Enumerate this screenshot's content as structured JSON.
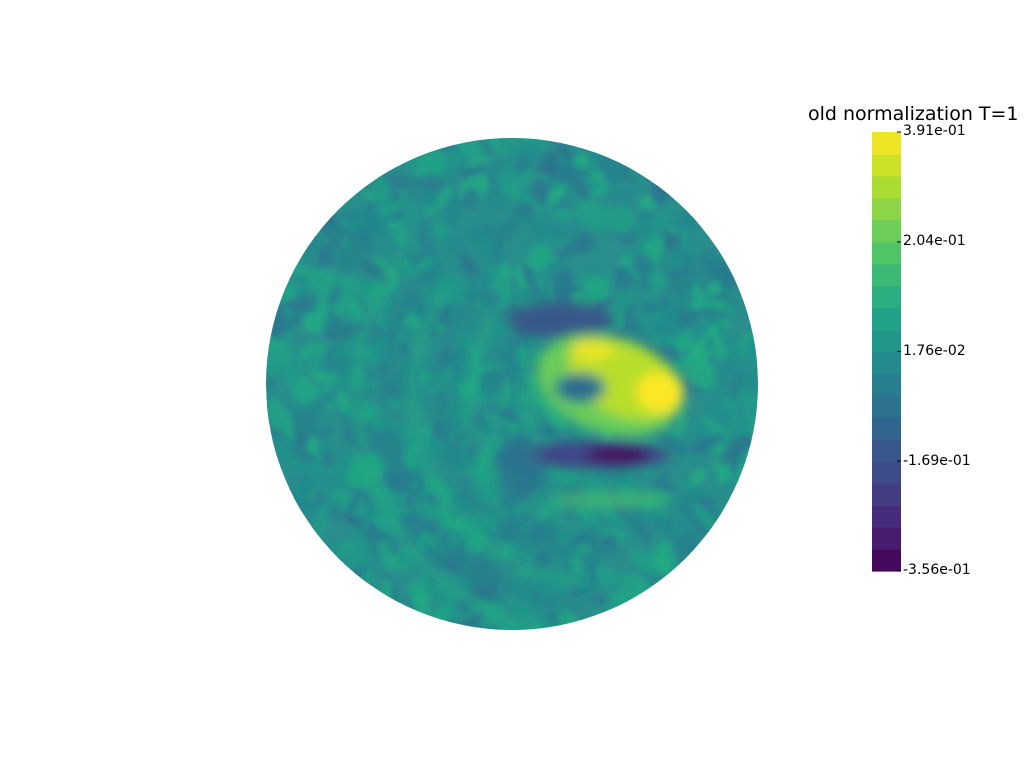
{
  "chart_data": {
    "type": "heatmap",
    "title": "old normalization T=1",
    "colormap": "viridis",
    "domain": "disk",
    "range": [
      -0.356,
      0.391
    ],
    "colorbar": {
      "title": "old normalization T=1",
      "tick_labels": [
        "3.91e-01",
        "2.04e-01",
        "1.76e-02",
        "-1.69e-01",
        "-3.56e-01"
      ],
      "tick_values": [
        0.391,
        0.204,
        0.0176,
        -0.169,
        -0.356
      ],
      "n_bands": 20
    },
    "background_value": 0.0176,
    "features": [
      {
        "label": "",
        "x": 0.55,
        "y": 0.1,
        "value": 0.35,
        "desc": "bright crescent"
      },
      {
        "label": "",
        "x": 0.35,
        "y": 0.25,
        "value": -0.35,
        "desc": "dark trough"
      }
    ]
  }
}
